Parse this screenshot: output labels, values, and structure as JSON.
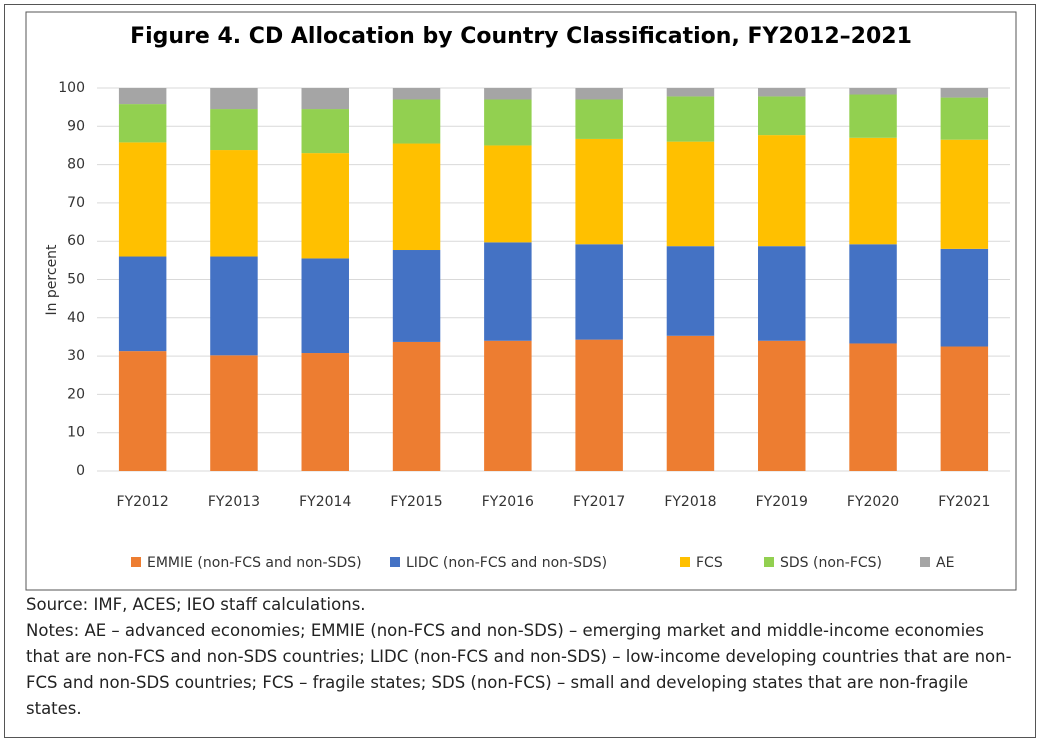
{
  "chart_data": {
    "type": "stacked_bar",
    "title": "Figure 4. CD Allocation by Country Classification, FY2012–2021",
    "y_label": "In percent",
    "categories": [
      "FY2012",
      "FY2013",
      "FY2014",
      "FY2015",
      "FY2016",
      "FY2017",
      "FY2018",
      "FY2019",
      "FY2020",
      "FY2021"
    ],
    "series": [
      {
        "name": "EMMIE (non-FCS and non-SDS)",
        "color": "#ed7d31",
        "values": [
          31.3,
          30.2,
          30.8,
          33.7,
          34.0,
          34.3,
          35.3,
          34.0,
          33.3,
          32.5
        ]
      },
      {
        "name": "LIDC (non-FCS and non-SDS)",
        "color": "#4472c4",
        "values": [
          24.7,
          25.8,
          24.7,
          24.0,
          25.7,
          24.9,
          23.4,
          24.7,
          25.9,
          25.5
        ]
      },
      {
        "name": "FCS",
        "color": "#ffc000",
        "values": [
          29.8,
          27.8,
          27.5,
          27.8,
          25.3,
          27.5,
          27.3,
          29.0,
          27.8,
          28.5
        ]
      },
      {
        "name": "SDS (non-FCS)",
        "color": "#92d050",
        "values": [
          10.0,
          10.7,
          11.5,
          11.5,
          12.0,
          10.3,
          11.8,
          10.1,
          11.3,
          11.0
        ]
      },
      {
        "name": "AE",
        "color": "#a5a5a5",
        "values": [
          4.2,
          5.5,
          5.5,
          3.0,
          3.0,
          3.0,
          2.2,
          2.2,
          1.7,
          2.5
        ]
      }
    ],
    "ylim": [
      0,
      100
    ],
    "yticks": [
      0,
      10,
      20,
      30,
      40,
      50,
      60,
      70,
      80,
      90,
      100
    ],
    "grid": true,
    "legend": "bottom"
  },
  "source": "Source: IMF, ACES; IEO staff calculations.",
  "notes": "Notes: AE – advanced economies; EMMIE (non-FCS and non-SDS) – emerging market and middle-income economies that are non-FCS and non-SDS countries; LIDC (non-FCS and non-SDS) – low-income developing countries that are non-FCS and non-SDS countries; FCS – fragile states; SDS (non-FCS) – small and developing states that are non-fragile states."
}
